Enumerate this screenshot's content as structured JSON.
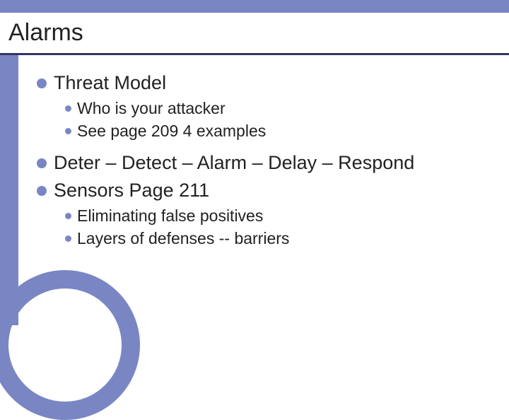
{
  "colors": {
    "accent": "#7a86c4",
    "underline": "#333366",
    "text": "#222222",
    "background": "#ffffff"
  },
  "typography": {
    "title_fontsize": 34,
    "level1_fontsize": 27,
    "level2_fontsize": 23,
    "font_family": "Arial"
  },
  "slide": {
    "title": "Alarms",
    "bullets": [
      {
        "text": "Threat Model",
        "children": [
          {
            "text": "Who is your attacker"
          },
          {
            "text": "See page 209 4 examples"
          }
        ]
      },
      {
        "text": "Deter – Detect – Alarm – Delay – Respond",
        "children": []
      },
      {
        "text": "Sensors Page 211",
        "children": [
          {
            "text": "Eliminating false positives"
          },
          {
            "text": "Layers of defenses -- barriers"
          }
        ]
      }
    ]
  }
}
